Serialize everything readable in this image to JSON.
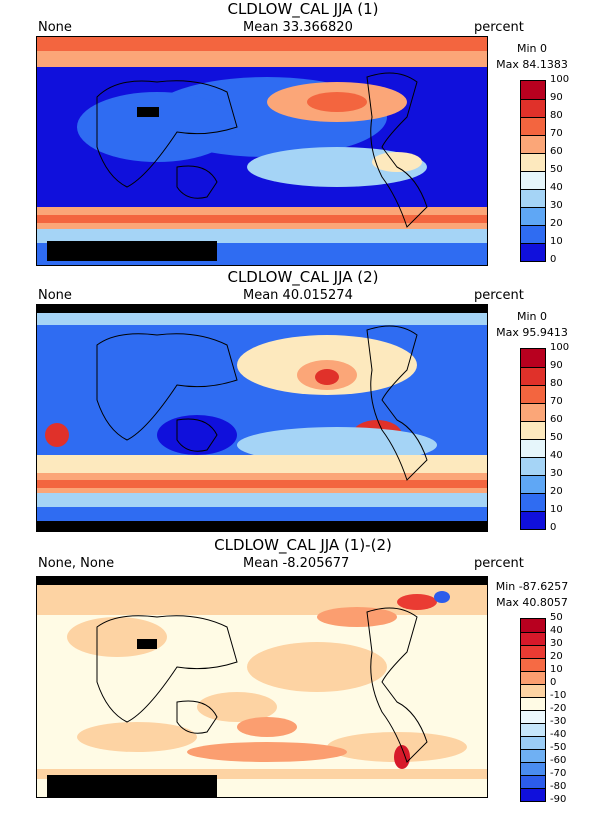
{
  "panels": [
    {
      "title": "CLDLOW_CAL JJA (1)",
      "left_label": "None",
      "mean": "Mean 33.366820",
      "units": "percent",
      "min": "Min 0",
      "max": "Max 84.1383",
      "colorbar": {
        "ticks": [
          "100",
          "90",
          "80",
          "70",
          "60",
          "50",
          "40",
          "30",
          "20",
          "10",
          "0"
        ],
        "colors": [
          "#b8001f",
          "#e0312a",
          "#f3653f",
          "#fba678",
          "#fde9be",
          "#e6f6fb",
          "#a5d4f6",
          "#5fa7f5",
          "#2f6cf2",
          "#1010dc"
        ]
      }
    },
    {
      "title": "CLDLOW_CAL JJA (2)",
      "left_label": "None",
      "mean": "Mean 40.015274",
      "units": "percent",
      "min": "Min 0",
      "max": "Max 95.9413",
      "colorbar": {
        "ticks": [
          "100",
          "90",
          "80",
          "70",
          "60",
          "50",
          "40",
          "30",
          "20",
          "10",
          "0"
        ],
        "colors": [
          "#b8001f",
          "#e0312a",
          "#f3653f",
          "#fba678",
          "#fde9be",
          "#e6f6fb",
          "#a5d4f6",
          "#5fa7f5",
          "#2f6cf2",
          "#1010dc"
        ]
      }
    },
    {
      "title": "CLDLOW_CAL JJA (1)-(2)",
      "left_label": "None, None",
      "mean": "Mean -8.205677",
      "units": "percent",
      "min": "Min -87.6257",
      "max": "Max 40.8057",
      "colorbar": {
        "ticks": [
          "50",
          "40",
          "30",
          "20",
          "10",
          "0",
          "-10",
          "-20",
          "-30",
          "-40",
          "-50",
          "-60",
          "-70",
          "-80",
          "-90"
        ],
        "colors": [
          "#b8001f",
          "#d7192a",
          "#ea3b33",
          "#f66a44",
          "#fb9e70",
          "#fdd3a3",
          "#fffbe5",
          "#ecf8fd",
          "#c6e6fb",
          "#9bcdf6",
          "#6fb0f3",
          "#4a8cf0",
          "#2c5ceb",
          "#1010dc"
        ]
      }
    }
  ]
}
